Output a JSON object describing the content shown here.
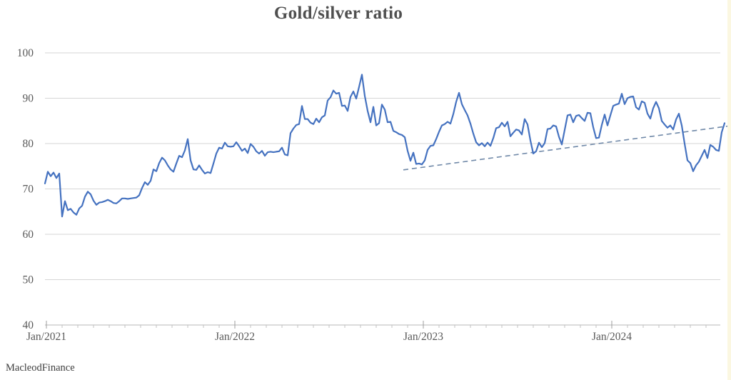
{
  "header": {
    "title": "Gold/silver ratio"
  },
  "footer": {
    "credit": "MacleodFinance"
  },
  "colors": {
    "series": "#4572c0",
    "trendline": "#7089a8",
    "grid": "#d6d6d6",
    "axis_line": "#b7b7b7",
    "major_tick": "#9e9e9e",
    "minor_tick": "#c2c2c2",
    "axis_text": "#595959",
    "title_text": "#4f4f4f",
    "credit_text": "#3d3d3d",
    "page_edge": "#fbf7e1"
  },
  "chart_data": {
    "type": "line",
    "title": "Gold/silver ratio",
    "xlabel": "",
    "ylabel": "",
    "grid": "horizontal",
    "legend": "none",
    "x_axis": {
      "tick_labels": [
        "Jan/2021",
        "Jan/2022",
        "Jan/2023",
        "Jan/2024"
      ],
      "tick_years": [
        2021,
        2022,
        2023,
        2024
      ],
      "minor_tick_interval_years": 0.0833333,
      "range_years": [
        2020.99,
        2024.62
      ]
    },
    "y_axis": {
      "ticks": [
        40,
        50,
        60,
        70,
        80,
        90,
        100
      ],
      "range": [
        40,
        100
      ]
    },
    "series": [
      {
        "name": "Gold/silver ratio",
        "color": "#4572c0",
        "x_start_year": 2020.9924,
        "x_step_years": 0.0151515,
        "values": [
          71.2,
          73.8,
          72.8,
          73.6,
          72.4,
          73.4,
          63.9,
          67.3,
          65.3,
          65.6,
          64.8,
          64.3,
          65.7,
          66.3,
          68.3,
          69.4,
          68.8,
          67.4,
          66.5,
          67.0,
          67.1,
          67.3,
          67.6,
          67.3,
          66.9,
          66.8,
          67.3,
          67.9,
          67.9,
          67.8,
          67.9,
          68.0,
          68.1,
          68.6,
          70.2,
          71.5,
          70.9,
          71.8,
          74.3,
          73.9,
          75.7,
          76.9,
          76.3,
          75.2,
          74.3,
          73.8,
          75.6,
          77.3,
          77.0,
          78.5,
          81.0,
          76.3,
          74.3,
          74.2,
          75.2,
          74.2,
          73.4,
          73.7,
          73.5,
          75.6,
          77.8,
          79.1,
          78.9,
          80.2,
          79.4,
          79.3,
          79.4,
          80.3,
          79.4,
          78.4,
          78.9,
          77.9,
          79.9,
          79.3,
          78.3,
          77.8,
          78.4,
          77.3,
          78.1,
          78.2,
          78.1,
          78.2,
          78.3,
          79.1,
          77.6,
          77.4,
          82.3,
          83.3,
          84.1,
          84.3,
          88.3,
          85.4,
          85.4,
          84.6,
          84.3,
          85.5,
          84.7,
          85.8,
          86.2,
          89.5,
          90.2,
          91.7,
          91.0,
          91.2,
          88.3,
          88.4,
          87.2,
          90.3,
          91.5,
          89.9,
          92.5,
          95.2,
          90.5,
          87.2,
          84.7,
          88.1,
          84.0,
          84.5,
          88.6,
          87.5,
          84.7,
          84.8,
          82.8,
          82.5,
          82.1,
          81.9,
          81.4,
          78.4,
          76.2,
          78.0,
          75.5,
          75.6,
          75.4,
          76.3,
          78.6,
          79.5,
          79.6,
          81.0,
          82.6,
          84.0,
          84.3,
          84.8,
          84.4,
          86.5,
          89.2,
          91.2,
          88.7,
          87.4,
          86.2,
          84.4,
          82.2,
          80.3,
          79.6,
          80.1,
          79.4,
          80.2,
          79.5,
          81.2,
          83.4,
          83.6,
          84.6,
          83.8,
          84.8,
          81.6,
          82.4,
          83.1,
          82.9,
          82.0,
          85.4,
          84.2,
          80.7,
          77.8,
          78.3,
          80.2,
          79.2,
          80.1,
          83.2,
          83.3,
          84.0,
          83.8,
          81.5,
          79.8,
          83.0,
          86.2,
          86.4,
          84.7,
          86.1,
          86.3,
          85.6,
          85.0,
          86.8,
          86.7,
          83.6,
          81.2,
          81.3,
          84.1,
          86.4,
          84.0,
          86.2,
          88.3,
          88.6,
          88.8,
          91.0,
          88.7,
          90.0,
          90.3,
          90.4,
          88.0,
          87.5,
          89.3,
          89.0,
          86.6,
          85.5,
          87.8,
          89.2,
          87.8,
          85.0,
          84.2,
          83.5,
          84.0,
          83.1,
          85.3,
          86.6,
          84.0,
          80.0,
          76.3,
          75.7,
          73.9,
          75.2,
          76.0,
          77.3,
          78.6,
          76.8,
          79.7,
          79.3,
          78.6,
          78.4,
          82.5,
          84.5
        ]
      }
    ],
    "trendline": {
      "style": "dashed",
      "color": "#7089a8",
      "x1_year": 2022.894,
      "v1": 74.2,
      "x2_year": 2024.625,
      "v2": 83.9
    }
  }
}
